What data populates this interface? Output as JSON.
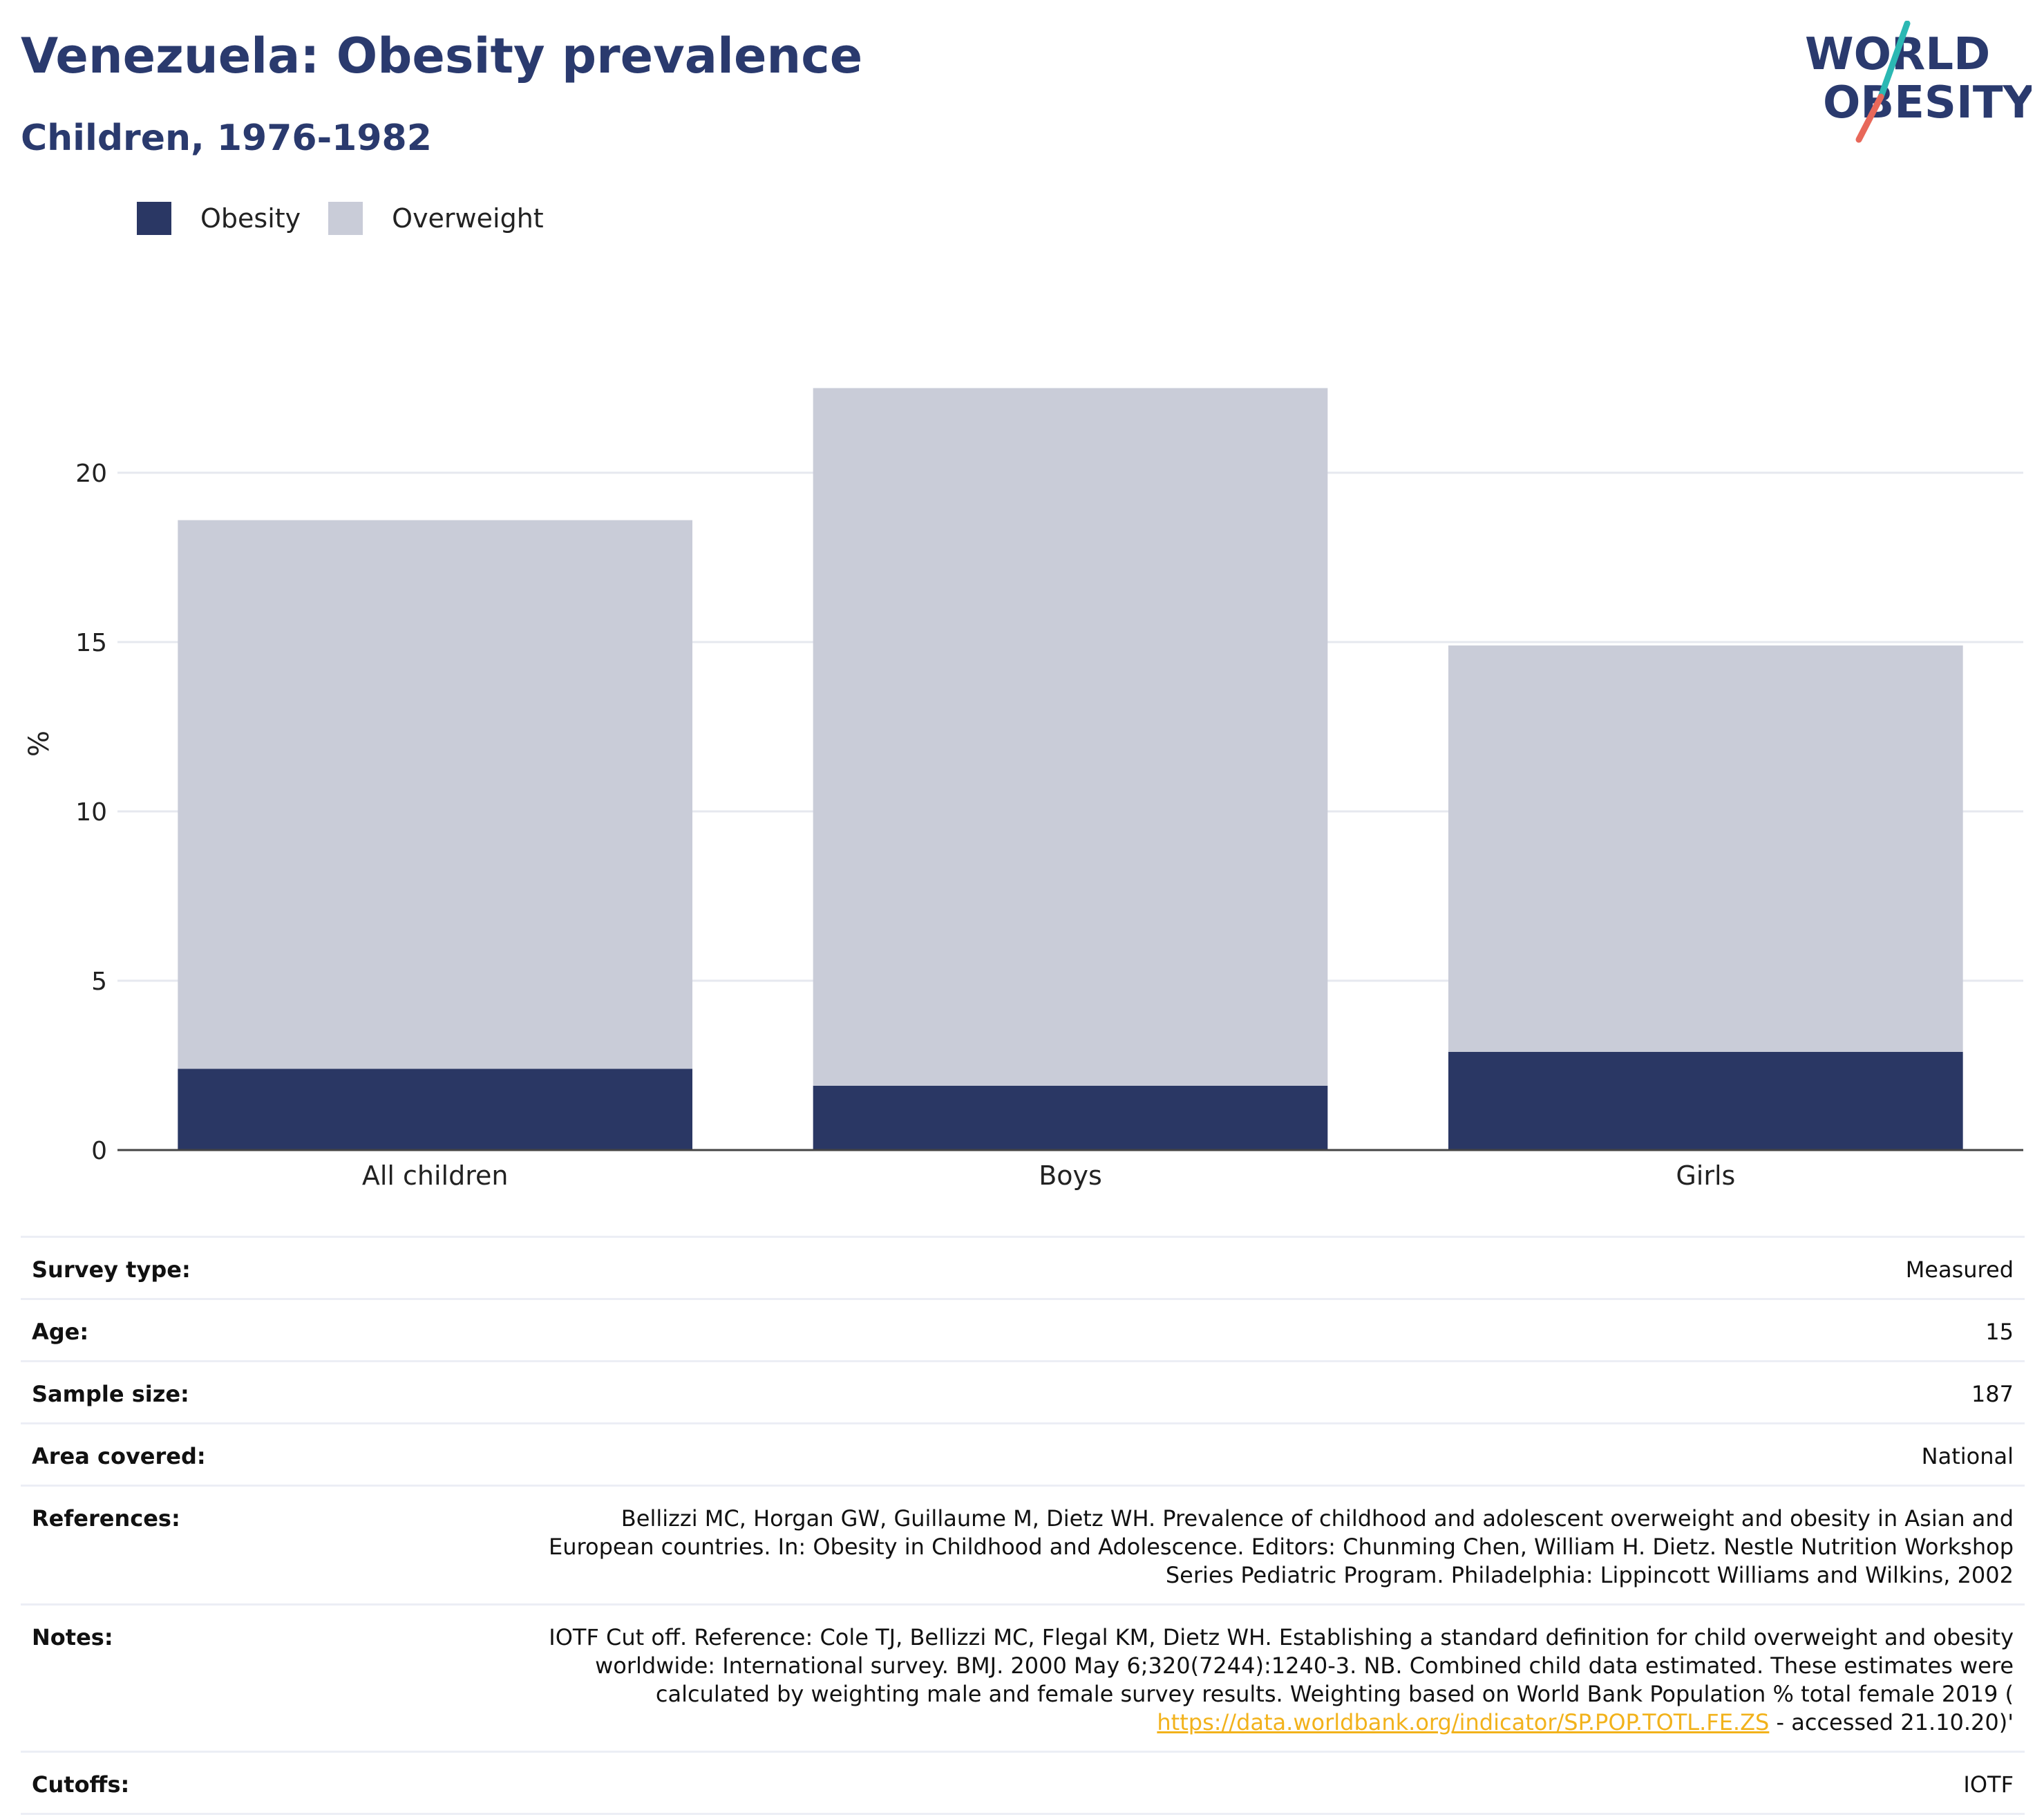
{
  "header": {
    "title": "Venezuela: Obesity prevalence",
    "subtitle": "Children, 1976-1982"
  },
  "logo": {
    "line1": "WORLD",
    "line2": "OBESITY",
    "colors": {
      "text": "#2a3a6e",
      "slash_top": "#2bb8b3",
      "slash_bottom": "#e8685a"
    }
  },
  "legend": [
    {
      "name": "Obesity",
      "color": "#2a3764"
    },
    {
      "name": "Overweight",
      "color": "#c9ccd8"
    }
  ],
  "chart_data": {
    "type": "bar",
    "stacked": true,
    "categories": [
      "All children",
      "Boys",
      "Girls"
    ],
    "series": [
      {
        "name": "Obesity",
        "values": [
          2.4,
          1.9,
          2.9
        ],
        "color": "#2a3764"
      },
      {
        "name": "Overweight",
        "values": [
          16.2,
          20.6,
          12.0
        ],
        "color": "#c9ccd8"
      }
    ],
    "ylabel": "%",
    "xlabel": "",
    "ylim": [
      0,
      24
    ],
    "yticks": [
      0,
      5,
      10,
      15,
      20
    ],
    "grid": true,
    "legend_position": "top-left"
  },
  "info": {
    "survey_type": {
      "label": "Survey type:",
      "value": "Measured"
    },
    "age": {
      "label": "Age:",
      "value": "15"
    },
    "sample_size": {
      "label": "Sample size:",
      "value": "187"
    },
    "area": {
      "label": "Area covered:",
      "value": "National"
    },
    "references": {
      "label": "References:",
      "line1": "Bellizzi MC, Horgan GW, Guillaume M, Dietz WH. Prevalence of childhood and adolescent overweight and obesity in Asian and",
      "line2": "European countries. In: Obesity in Childhood and Adolescence. Editors: Chunming Chen, William H. Dietz. Nestle Nutrition Workshop",
      "line3": "Series Pediatric Program. Philadelphia: Lippincott Williams and Wilkins, 2002"
    },
    "notes": {
      "label": "Notes:",
      "line1": "IOTF Cut off. Reference: Cole TJ, Bellizzi MC, Flegal KM, Dietz WH. Establishing a standard definition for child overweight and obesity",
      "line2": "worldwide: International survey. BMJ. 2000 May 6;320(7244):1240-3. NB. Combined child data estimated. These estimates were",
      "line3": "calculated by weighting male and female survey results. Weighting based on World Bank Population % total female 2019 (",
      "link": "https://data.worldbank.org/indicator/SP.POP.TOTL.FE.ZS",
      "after_link": " - accessed 21.10.20)'"
    },
    "cutoffs": {
      "label": "Cutoffs:",
      "value": "IOTF"
    }
  }
}
